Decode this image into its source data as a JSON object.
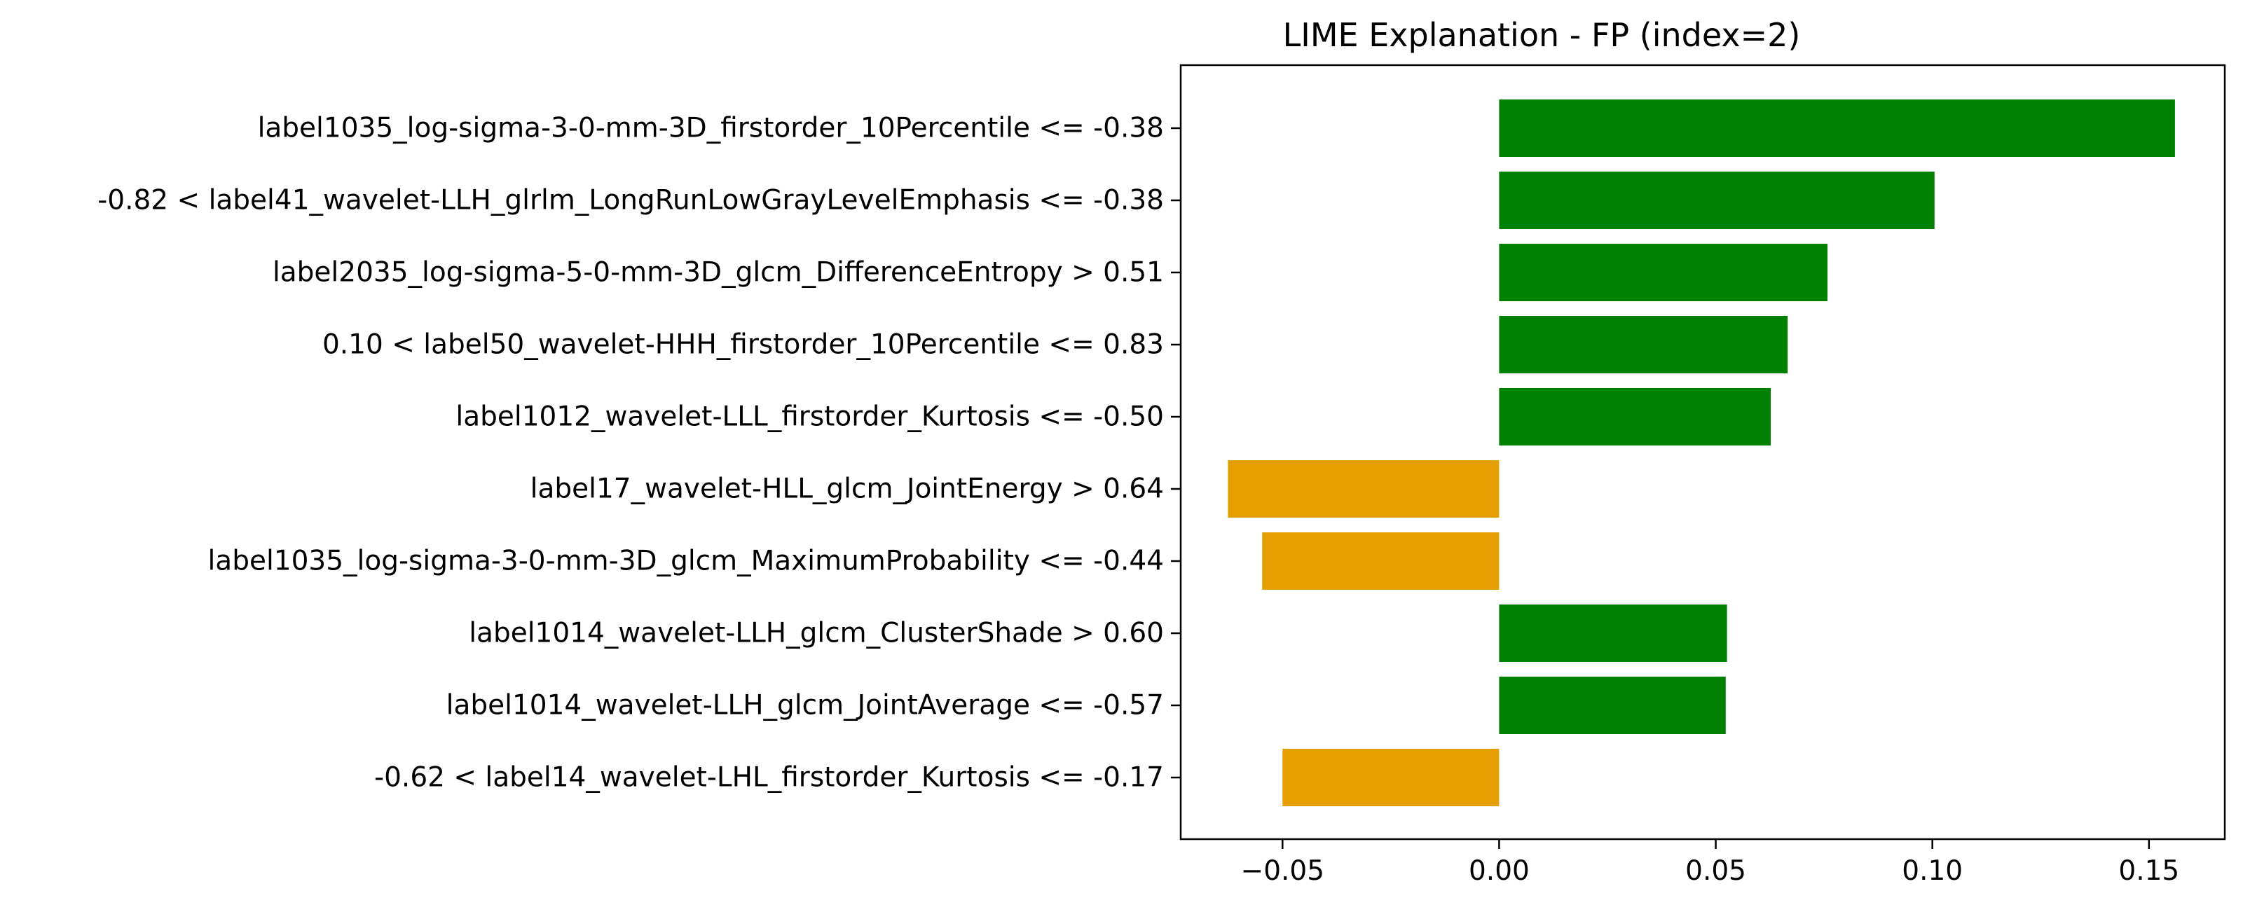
{
  "chart_data": {
    "type": "bar",
    "orientation": "horizontal",
    "title": "LIME Explanation - FP (index=2)",
    "xlabel": "",
    "ylabel": "",
    "categories": [
      "label1035_log-sigma-3-0-mm-3D_firstorder_10Percentile <= -0.38",
      "-0.82 < label41_wavelet-LLH_glrlm_LongRunLowGrayLevelEmphasis <= -0.38",
      "label2035_log-sigma-5-0-mm-3D_glcm_DifferenceEntropy > 0.51",
      "0.10 < label50_wavelet-HHH_firstorder_10Percentile <= 0.83",
      "label1012_wavelet-LLL_firstorder_Kurtosis <= -0.50",
      "label17_wavelet-HLL_glcm_JointEnergy > 0.64",
      "label1035_log-sigma-3-0-mm-3D_glcm_MaximumProbability <= -0.44",
      "label1014_wavelet-LLH_glcm_ClusterShade > 0.60",
      "label1014_wavelet-LLH_glcm_JointAverage <= -0.57",
      "-0.62 < label14_wavelet-LHL_firstorder_Kurtosis <= -0.17"
    ],
    "values": [
      0.156,
      0.1005,
      0.0758,
      0.0666,
      0.0627,
      -0.0626,
      -0.0547,
      0.0526,
      0.0523,
      -0.05
    ],
    "xlim": [
      -0.0735,
      0.1675
    ],
    "xticks": [
      -0.05,
      0.0,
      0.05,
      0.1,
      0.15
    ],
    "xtick_labels": [
      "−0.05",
      "0.00",
      "0.05",
      "0.10",
      "0.15"
    ],
    "colors": {
      "positive": "#008000",
      "negative": "#e69f00"
    },
    "grid": false,
    "legend": "none"
  }
}
